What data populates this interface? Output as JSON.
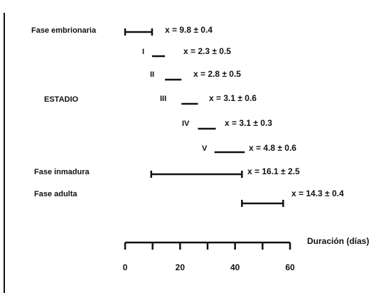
{
  "chart_data": {
    "type": "gantt",
    "xlabel": "Duración (días)",
    "xlim": [
      0,
      60
    ],
    "x_ticks": [
      0,
      20,
      40,
      60
    ],
    "minor_tick_step": 10,
    "group_label": "ESTADIO",
    "bar_color": "#111111",
    "rows": [
      {
        "id": "embrionaria",
        "label": "Fase embrionaria",
        "start": 0,
        "end": 9.8,
        "annotation": "x = 9.8 ± 0.4"
      },
      {
        "id": "stage-1",
        "label": "I",
        "start": 9.8,
        "end": 14.5,
        "annotation": "x = 2.3 ± 0.5"
      },
      {
        "id": "stage-2",
        "label": "II",
        "start": 14.5,
        "end": 20.5,
        "annotation": "x = 2.8 ± 0.5"
      },
      {
        "id": "stage-3",
        "label": "III",
        "start": 20.5,
        "end": 26.5,
        "annotation": "x = 3.1 ± 0.6"
      },
      {
        "id": "stage-4",
        "label": "IV",
        "start": 26.5,
        "end": 33,
        "annotation": "x = 3.1 ± 0.3"
      },
      {
        "id": "stage-5",
        "label": "V",
        "start": 32.5,
        "end": 43.5,
        "annotation": "x = 4.8 ± 0.6"
      },
      {
        "id": "inmadura",
        "label": "Fase inmadura",
        "start": 9.5,
        "end": 42.5,
        "annotation": "x = 16.1 ± 2.5"
      },
      {
        "id": "adulta",
        "label": "Fase adulta",
        "start": 42.5,
        "end": 57.5,
        "annotation": "x = 14.3 ± 0.4"
      }
    ]
  }
}
